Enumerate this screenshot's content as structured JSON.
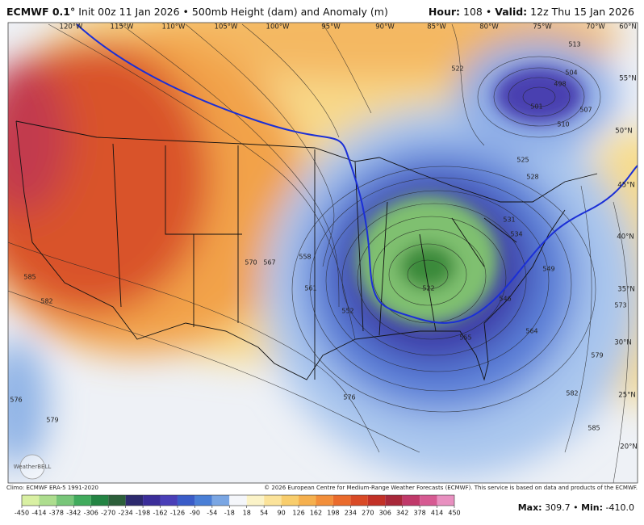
{
  "header": {
    "model": "ECMWF 0.1°",
    "subtitle": "Init 00z 11 Jan 2026 • 500mb Height (dam) and Anomaly (m)",
    "hour_label": "Hour:",
    "hour": "108 •",
    "valid_label": "Valid:",
    "valid": "12z Thu 15 Jan 2026"
  },
  "map": {
    "longitudes": [
      "120°W",
      "115°W",
      "110°W",
      "105°W",
      "100°W",
      "95°W",
      "90°W",
      "85°W",
      "80°W",
      "75°W",
      "70°W"
    ],
    "latitudes": [
      "60°N",
      "55°N",
      "50°N",
      "45°N",
      "40°N",
      "35°N",
      "30°N",
      "25°N",
      "20°N"
    ],
    "contour_labels": [
      "585",
      "582",
      "576",
      "579",
      "570",
      "567",
      "558",
      "561",
      "552",
      "522",
      "546",
      "549",
      "564",
      "582",
      "585",
      "579",
      "573",
      "576",
      "513",
      "504",
      "498",
      "501",
      "507",
      "510",
      "525",
      "528",
      "531",
      "534",
      "522",
      "555"
    ],
    "logo": "WeatherBELL"
  },
  "footer": {
    "climo": "Climo: ECMWF ERA-5 1991-2020",
    "copyright": "© 2026 European Centre for Medium-Range Weather Forecasts (ECMWF). This service is based on data and products of the ECMWF.",
    "max_label": "Max:",
    "max": "309.7 •",
    "min_label": "Min:",
    "min": "-410.0"
  },
  "colorbar": {
    "ticks": [
      -450,
      -414,
      -378,
      -342,
      -306,
      -270,
      -234,
      -198,
      -162,
      -126,
      -90,
      -54,
      -18,
      18,
      54,
      90,
      126,
      162,
      198,
      234,
      270,
      306,
      342,
      378,
      414,
      450
    ],
    "colors": [
      "#d9f0a3",
      "#addd8e",
      "#78c679",
      "#41ab5d",
      "#238443",
      "#2c5f3a",
      "#2d2a6e",
      "#3b2e9a",
      "#4a3fb8",
      "#3a5cc8",
      "#4a7fd6",
      "#7aa6e3",
      "#f4f6fa",
      "#fbf3c8",
      "#fbe39a",
      "#f8cd6c",
      "#f5b04e",
      "#f28f3b",
      "#ea6b2c",
      "#d94a26",
      "#c23127",
      "#a8283a",
      "#c0396a",
      "#d65a92",
      "#e890c0"
    ]
  }
}
